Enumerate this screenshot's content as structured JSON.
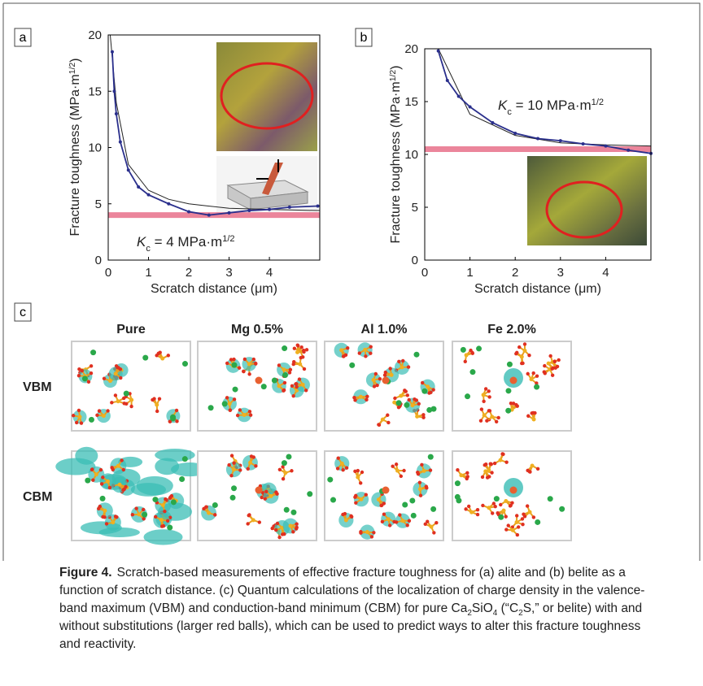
{
  "panel_labels": [
    "a",
    "b",
    "c"
  ],
  "chart_data": [
    {
      "type": "line",
      "xlabel": "Scratch distance (μm)",
      "ylabel": [
        {
          "text": "Fracture toughness (MPa·m"
        },
        {
          "text": "1/2",
          "style": "sup"
        },
        {
          "text": ")"
        }
      ],
      "annotation": [
        {
          "text": "K",
          "style": "italic"
        },
        {
          "text": "c",
          "style": "sub"
        },
        {
          "text": " = 4 MPa·m"
        },
        {
          "text": "1/2",
          "style": "sup"
        }
      ],
      "xlim": [
        0,
        5.25
      ],
      "ylim": [
        0,
        20
      ],
      "xticks": [
        0,
        1,
        2,
        3,
        4
      ],
      "yticks": [
        0,
        5,
        10,
        15,
        20
      ],
      "series": [
        {
          "color": "#e8708a",
          "style": "band",
          "x": [
            0,
            5.25
          ],
          "values": [
            4,
            4
          ]
        },
        {
          "color": "#222222",
          "style": "line",
          "x": [
            0.05,
            0.2,
            0.5,
            1,
            1.5,
            2,
            3,
            4,
            5.25
          ],
          "values": [
            20,
            14,
            8.5,
            6.2,
            5.4,
            5,
            4.6,
            4.5,
            4.4
          ]
        },
        {
          "color": "#2a2f8c",
          "style": "dots",
          "x": [
            0.1,
            0.15,
            0.2,
            0.3,
            0.5,
            0.75,
            1,
            1.5,
            2,
            2.5,
            3,
            3.5,
            4,
            4.5,
            5.2
          ],
          "values": [
            18.5,
            15,
            13,
            10.5,
            8,
            6.5,
            5.8,
            5,
            4.3,
            4,
            4.2,
            4.4,
            4.5,
            4.7,
            4.8
          ]
        }
      ]
    },
    {
      "type": "line",
      "xlabel": "Scratch distance (μm)",
      "ylabel": [
        {
          "text": "Fracture toughness (MPa·m"
        },
        {
          "text": "1/2",
          "style": "sup"
        },
        {
          "text": ")"
        }
      ],
      "annotation": [
        {
          "text": "K",
          "style": "italic"
        },
        {
          "text": "c",
          "style": "sub"
        },
        {
          "text": " = 10 MPa·m"
        },
        {
          "text": "1/2",
          "style": "sup"
        }
      ],
      "xlim": [
        0,
        5
      ],
      "ylim": [
        0,
        20
      ],
      "xticks": [
        0,
        1,
        2,
        3,
        4
      ],
      "yticks": [
        0,
        5,
        10,
        15,
        20
      ],
      "series": [
        {
          "color": "#e8708a",
          "style": "band",
          "x": [
            0,
            5
          ],
          "values": [
            10.5,
            10.5
          ]
        },
        {
          "color": "#222222",
          "style": "line",
          "x": [
            0.3,
            1,
            2,
            3,
            4,
            5
          ],
          "values": [
            20,
            13.8,
            11.8,
            11.1,
            10.9,
            10.8
          ]
        },
        {
          "color": "#2a2f8c",
          "style": "dots",
          "x": [
            0.3,
            0.5,
            0.75,
            1,
            1.5,
            2,
            2.5,
            3,
            3.5,
            4,
            4.5,
            5
          ],
          "values": [
            19.8,
            17,
            15.5,
            14.5,
            13,
            12,
            11.5,
            11.3,
            11,
            10.8,
            10.4,
            10.1
          ]
        }
      ]
    }
  ],
  "panel_c": {
    "columns": [
      "Pure",
      "Mg 0.5%",
      "Al 1.0%",
      "Fe 2.0%"
    ],
    "rows": [
      "VBM",
      "CBM"
    ]
  },
  "caption": {
    "label": "Figure 4.",
    "runs": [
      {
        "text": "Scratch-based measurements of effective fracture toughness for (a) alite and (b) belite as a function of scratch distance. (c) Quantum calculations of the localization of charge density in the valence-band maximum (VBM) and conduction-band minimum (CBM) for pure Ca"
      },
      {
        "text": "2",
        "style": "sub"
      },
      {
        "text": "SiO"
      },
      {
        "text": "4",
        "style": "sub"
      },
      {
        "text": " (“C"
      },
      {
        "text": "2",
        "style": "sub"
      },
      {
        "text": "S,” or belite) with and without substitutions (larger red balls), which can be used to predict ways to alter this fracture toughness and reactivity."
      }
    ]
  }
}
